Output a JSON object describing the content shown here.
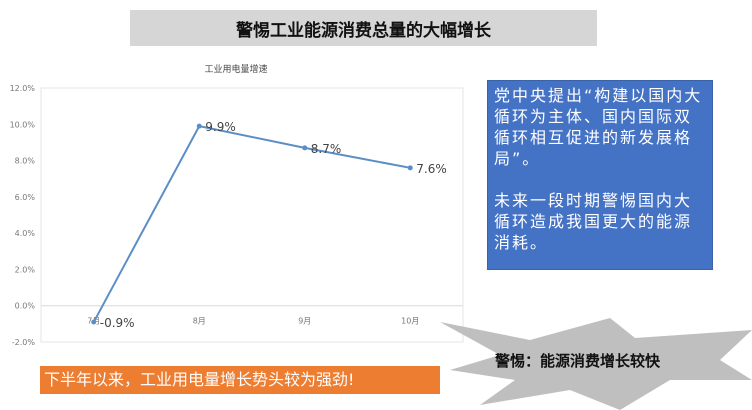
{
  "title": "警惕工业能源消费总量的大幅增长",
  "chart_data": {
    "type": "line",
    "title": "工业用电量增速",
    "categories": [
      "7月",
      "8月",
      "9月",
      "10月"
    ],
    "values": [
      -0.9,
      9.9,
      8.7,
      7.6
    ],
    "data_labels": [
      "-0.9%",
      "9.9%",
      "8.7%",
      "7.6%"
    ],
    "ylim": [
      -2,
      12
    ],
    "yticks": [
      "-2.0%",
      "0.0%",
      "2.0%",
      "4.0%",
      "6.0%",
      "8.0%",
      "10.0%",
      "12.0%"
    ],
    "grid": false,
    "color": "#5b8ec4"
  },
  "blue_box": {
    "para1": "党中央提出“构建以国内大循环为主体、国内国际双循环相互促进的新发展格局”。",
    "para2": "未来一段时期警惕国内大循环造成我国更大的能源消耗。"
  },
  "orange_box": "下半年以来，工业用电量增长势头较为强劲!",
  "burst_label": "警惕：能源消费增长较快",
  "colors": {
    "banner": "#d6d6d6",
    "blue": "#4472c4",
    "orange": "#ed7d31",
    "burst": "#bfbfbf"
  }
}
